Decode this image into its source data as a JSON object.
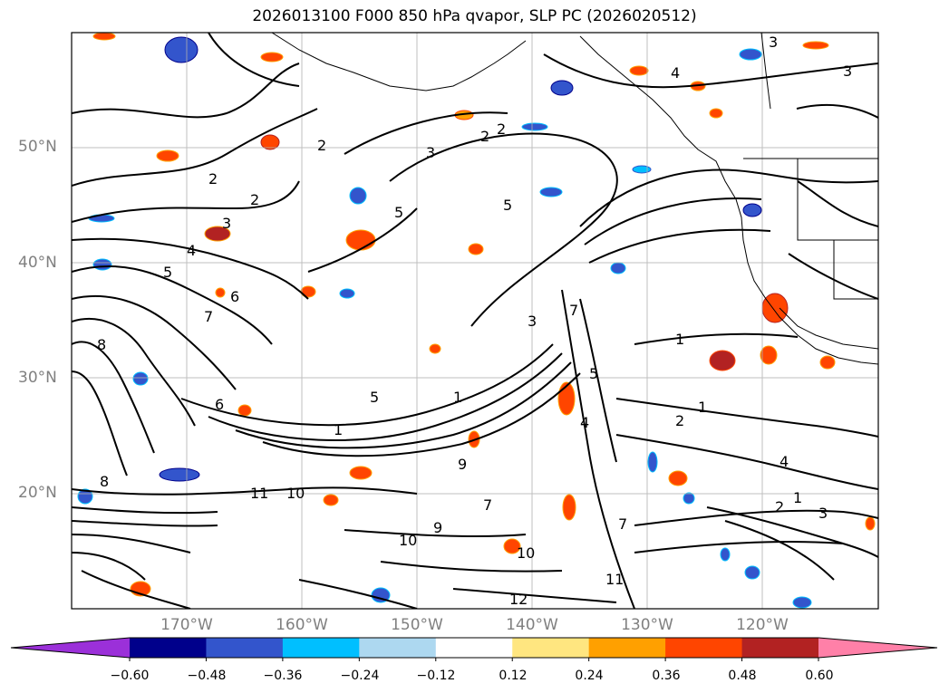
{
  "title": "2026013100 F000 850 hPa qvapor, SLP PC (2026020512)",
  "lat_labels": [
    "50°N",
    "40°N",
    "30°N",
    "20°N"
  ],
  "lon_labels": [
    "170°W",
    "160°W",
    "150°W",
    "140°W",
    "130°W",
    "120°W"
  ],
  "colorbar": {
    "colors": [
      "#9b30d9",
      "#00008b",
      "#3355cc",
      "#00bfff",
      "#add8f0",
      "#ffffff",
      "#ffe680",
      "#ffa000",
      "#ff4500",
      "#b22222",
      "#ff80a8"
    ],
    "tick_labels": [
      "−0.60",
      "−0.48",
      "−0.36",
      "−0.24",
      "−0.12",
      "0.12",
      "0.24",
      "0.36",
      "0.48",
      "0.60"
    ],
    "extend": "both"
  },
  "contour_labels": [
    "3",
    "3",
    "4",
    "2",
    "2",
    "2",
    "3",
    "2",
    "2",
    "5",
    "5",
    "3",
    "4",
    "5",
    "6",
    "7",
    "8",
    "1",
    "1",
    "6",
    "5",
    "7",
    "1",
    "1",
    "2",
    "3",
    "4",
    "5",
    "2",
    "1",
    "8",
    "7",
    "9",
    "10",
    "11",
    "10",
    "9",
    "10",
    "11",
    "12",
    "7",
    "3",
    "4"
  ],
  "map_layers": {
    "coastline": "black",
    "grid": "on",
    "moisture_fill": "filled anomaly contours",
    "pressure_contours": "black"
  }
}
